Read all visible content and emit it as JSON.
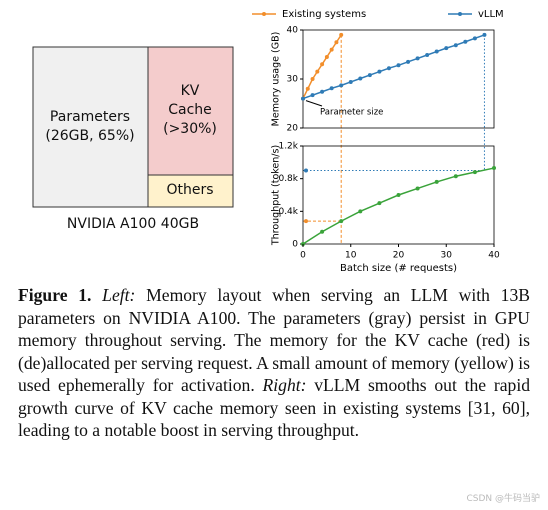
{
  "layout_diagram": {
    "parameters": "Parameters",
    "parameters_detail": "(26GB, 65%)",
    "kv_1": "KV",
    "kv_2": "Cache",
    "kv_detail": "(>30%)",
    "others": "Others",
    "device": "NVIDIA A100 40GB"
  },
  "chart_data": [
    {
      "type": "line",
      "ylabel": "Memory usage (GB)",
      "ylim": [
        20,
        40
      ],
      "yticks": [
        20,
        30,
        40
      ],
      "xlim": [
        0,
        40
      ],
      "annotation": "Parameter size",
      "series": [
        {
          "name": "Existing systems",
          "color": "#f28e2b",
          "x": [
            0,
            1,
            2,
            3,
            4,
            5,
            6,
            7,
            8
          ],
          "values": [
            26,
            28,
            30,
            31.5,
            33,
            34.5,
            36,
            37.5,
            39
          ]
        },
        {
          "name": "vLLM",
          "color": "#2f7bb6",
          "x": [
            0,
            2,
            4,
            6,
            8,
            10,
            12,
            14,
            16,
            18,
            20,
            22,
            24,
            26,
            28,
            30,
            32,
            34,
            36,
            38
          ],
          "values": [
            26,
            26.7,
            27.4,
            28.1,
            28.7,
            29.4,
            30.1,
            30.8,
            31.5,
            32.2,
            32.8,
            33.5,
            34.2,
            34.9,
            35.6,
            36.3,
            36.9,
            37.6,
            38.3,
            39
          ]
        }
      ]
    },
    {
      "type": "line",
      "ylabel": "Throughput (token/s)",
      "xlabel": "Batch size (# requests)",
      "xlim": [
        0,
        40
      ],
      "xticks": [
        0,
        10,
        20,
        30,
        40
      ],
      "ylim": [
        0,
        1200
      ],
      "yticks": [
        0,
        {
          "value": 400,
          "label": "0.4k"
        },
        {
          "value": 800,
          "label": "0.8k"
        },
        {
          "value": 1200,
          "label": "1.2k"
        }
      ],
      "series": [
        {
          "color": "#3aa33a",
          "x": [
            0,
            4,
            8,
            12,
            16,
            20,
            24,
            28,
            32,
            36,
            40
          ],
          "values": [
            0,
            150,
            280,
            400,
            500,
            600,
            680,
            760,
            830,
            880,
            930
          ]
        }
      ],
      "markers": [
        {
          "color": "#f28e2b",
          "x": 0,
          "value": 280
        },
        {
          "color": "#2f7bb6",
          "x": 0,
          "value": 900
        }
      ]
    }
  ],
  "caption": {
    "label": "Figure 1.",
    "left": "Left:",
    "text1": " Memory layout when serving an LLM with 13B parameters on NVIDIA A100. The parameters (gray) persist in GPU memory throughout serving. The memory for the KV cache (red) is (de)allocated per serving request. A small amount of memory (yellow) is used ephemerally for activation. ",
    "right": "Right:",
    "text2": " vLLM smooths out the rapid growth curve of KV cache memory seen in existing systems [31, 60], leading to a notable boost in serving throughput."
  },
  "watermark": "CSDN @牛码当驴"
}
